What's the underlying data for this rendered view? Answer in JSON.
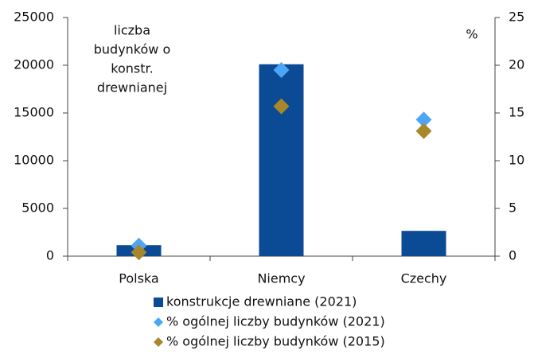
{
  "chart_data": {
    "type": "bar",
    "annotations": [
      "liczba",
      "budynków o",
      "konstr.",
      "drewnianej"
    ],
    "y2label": "%",
    "categories": [
      "Polska",
      "Niemcy",
      "Czechy"
    ],
    "series": [
      {
        "name": "konstrukcje drewniane (2021)",
        "color": "#0b4a94",
        "type": "bar",
        "values": [
          1150,
          20100,
          2650
        ]
      },
      {
        "name": "% ogólnej liczby budynków (2021)",
        "color": "#4da6f5",
        "type": "scatter",
        "axis": "y2",
        "values": [
          1.1,
          19.5,
          14.3
        ]
      },
      {
        "name": "% ogólnej liczby budynków (2015)",
        "color": "#a8862a",
        "type": "scatter",
        "axis": "y2",
        "values": [
          0.4,
          15.7,
          13.1
        ]
      }
    ],
    "ylim": [
      0,
      25000
    ],
    "yticks": [
      0,
      5000,
      10000,
      15000,
      20000,
      25000
    ],
    "y2lim": [
      0,
      25
    ],
    "y2ticks": [
      0,
      5,
      10,
      15,
      20,
      25
    ],
    "legend": "bottom"
  }
}
